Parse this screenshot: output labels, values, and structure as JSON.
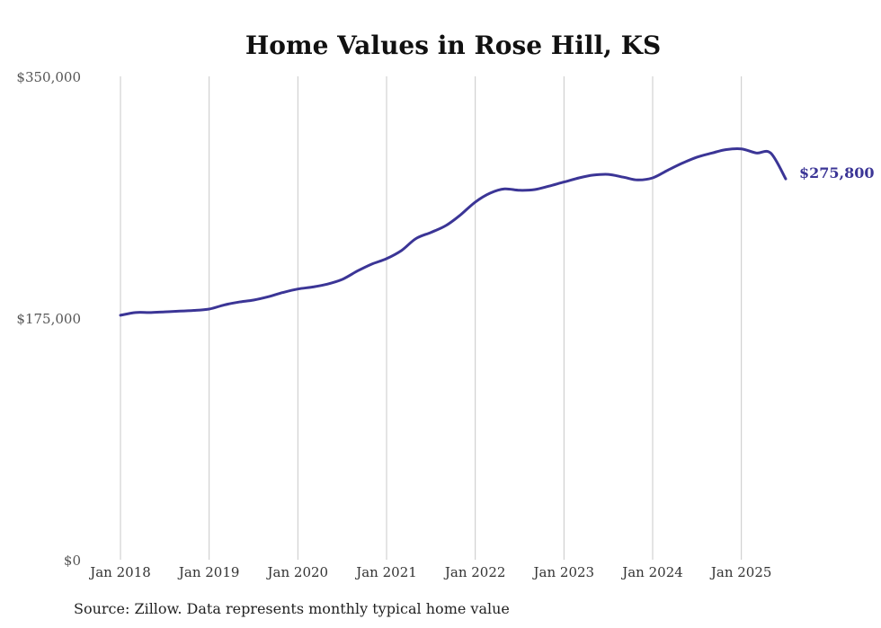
{
  "chart_data": {
    "type": "line",
    "title": "Home Values in Rose Hill, KS",
    "source": "Source: Zillow. Data represents monthly typical home value",
    "ylim": [
      0,
      350000
    ],
    "y_ticks": [
      {
        "value": 0,
        "label": "$0"
      },
      {
        "value": 175000,
        "label": "$175,000"
      },
      {
        "value": 350000,
        "label": "$350,000"
      }
    ],
    "x_ticks": [
      {
        "value": 2018.0,
        "label": "Jan 2018"
      },
      {
        "value": 2019.0,
        "label": "Jan 2019"
      },
      {
        "value": 2020.0,
        "label": "Jan 2020"
      },
      {
        "value": 2021.0,
        "label": "Jan 2021"
      },
      {
        "value": 2022.0,
        "label": "Jan 2022"
      },
      {
        "value": 2023.0,
        "label": "Jan 2023"
      },
      {
        "value": 2024.0,
        "label": "Jan 2024"
      },
      {
        "value": 2025.0,
        "label": "Jan 2025"
      }
    ],
    "xlim": [
      2018.0,
      2025.5
    ],
    "grid": "vertical",
    "line_color": "#3b3596",
    "end_label": "$275,800",
    "series": [
      {
        "x": [
          2018.0,
          2018.17,
          2018.33,
          2018.5,
          2018.67,
          2018.83,
          2019.0,
          2019.17,
          2019.33,
          2019.5,
          2019.67,
          2019.83,
          2020.0,
          2020.17,
          2020.33,
          2020.5,
          2020.67,
          2020.83,
          2021.0,
          2021.17,
          2021.33,
          2021.5,
          2021.67,
          2021.83,
          2022.0,
          2022.17,
          2022.33,
          2022.5,
          2022.67,
          2022.83,
          2023.0,
          2023.17,
          2023.33,
          2023.5,
          2023.67,
          2023.83,
          2024.0,
          2024.17,
          2024.33,
          2024.5,
          2024.67,
          2024.83,
          2025.0,
          2025.17,
          2025.33,
          2025.5
        ],
        "values": [
          177000,
          179000,
          179000,
          179500,
          180000,
          180500,
          181500,
          184500,
          186500,
          188000,
          190500,
          193500,
          196000,
          197500,
          199500,
          203000,
          209000,
          214000,
          218000,
          224000,
          232500,
          237000,
          242000,
          249500,
          259000,
          265500,
          268500,
          267500,
          268000,
          270500,
          273500,
          276500,
          278500,
          279000,
          277000,
          275000,
          276500,
          282000,
          287000,
          291500,
          294500,
          297000,
          297500,
          294500,
          294500,
          275800
        ]
      }
    ]
  }
}
